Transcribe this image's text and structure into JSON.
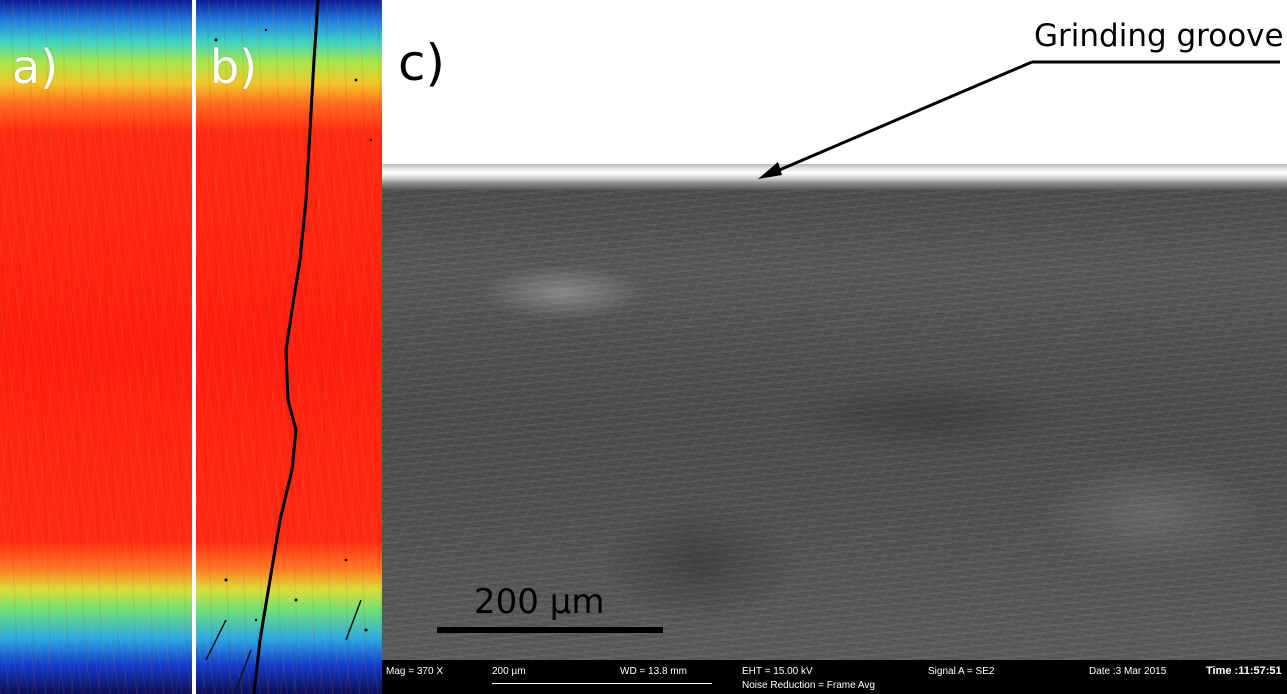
{
  "panels": {
    "a": {
      "label": "a)"
    },
    "b": {
      "label": "b)"
    },
    "c": {
      "label": "c)",
      "annotation": "Grinding groove",
      "scale_label": "200 µm"
    }
  },
  "sem_info": {
    "mag": "Mag =   370 X",
    "width": "200 µm",
    "wd": "WD = 13.8 mm",
    "eht": "EHT = 15.00 kV",
    "noise_reduction": "Noise Reduction = Frame Avg",
    "signal": "Signal A = SE2",
    "date": "Date :3 Mar 2015",
    "time": "Time :11:57:51"
  },
  "colors": {
    "thermal_core": "#ff1e10",
    "thermal_edge": "#0a1a9a",
    "sem_gray": "#4f4f4f",
    "info_bar": "#000000"
  }
}
